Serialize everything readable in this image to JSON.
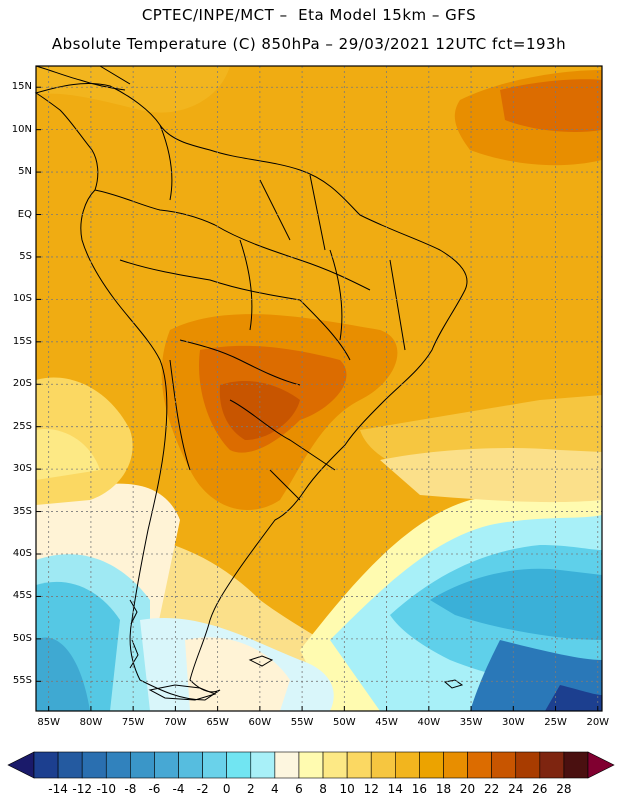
{
  "header": {
    "line1": "CPTEC/INPE/MCT –  Eta Model 15km – GFS",
    "line2": "Absolute Temperature (C) 850hPa – 29/03/2021 12UTC fct=193h"
  },
  "map": {
    "lat_labels": [
      "15N",
      "10N",
      "5N",
      "EQ",
      "5S",
      "10S",
      "15S",
      "20S",
      "25S",
      "30S",
      "35S",
      "40S",
      "45S",
      "50S",
      "55S"
    ],
    "lon_labels": [
      "85W",
      "80W",
      "75W",
      "70W",
      "65W",
      "60W",
      "55W",
      "50W",
      "45W",
      "40W",
      "35W",
      "30W",
      "25W",
      "20W"
    ],
    "lat_values": [
      15,
      10,
      5,
      0,
      -5,
      -10,
      -15,
      -20,
      -25,
      -30,
      -35,
      -40,
      -45,
      -50,
      -55
    ],
    "lon_values": [
      -85,
      -80,
      -75,
      -70,
      -65,
      -60,
      -55,
      -50,
      -45,
      -40,
      -35,
      -30,
      -25,
      -20
    ]
  },
  "colorbar": {
    "labels": [
      "-14",
      "-12",
      "-10",
      "-8",
      "-6",
      "-4",
      "-2",
      "0",
      "2",
      "4",
      "6",
      "8",
      "10",
      "12",
      "14",
      "16",
      "18",
      "20",
      "22",
      "24",
      "26",
      "28"
    ],
    "colors": [
      "#1c3f8f",
      "#245aa0",
      "#2a6fb0",
      "#3182bd",
      "#3a96c8",
      "#47a8d4",
      "#56bddf",
      "#6ad2ea",
      "#71e5f2",
      "#a8f0f8",
      "#fdf6df",
      "#fffbb0",
      "#fde985",
      "#fbd862",
      "#f6c640",
      "#f2b51e",
      "#eca300",
      "#e88e00",
      "#dc6c00",
      "#c85500",
      "#a83c00",
      "#7e2510",
      "#4a1010"
    ],
    "arrow_left_color": "#1a1a6a",
    "arrow_right_color": "#800030"
  },
  "colors": {
    "land_fill": "#eba21c",
    "ocean_warm": "#f2b51e",
    "cold_core": "#4bc6e6",
    "boundary": "#000000"
  }
}
